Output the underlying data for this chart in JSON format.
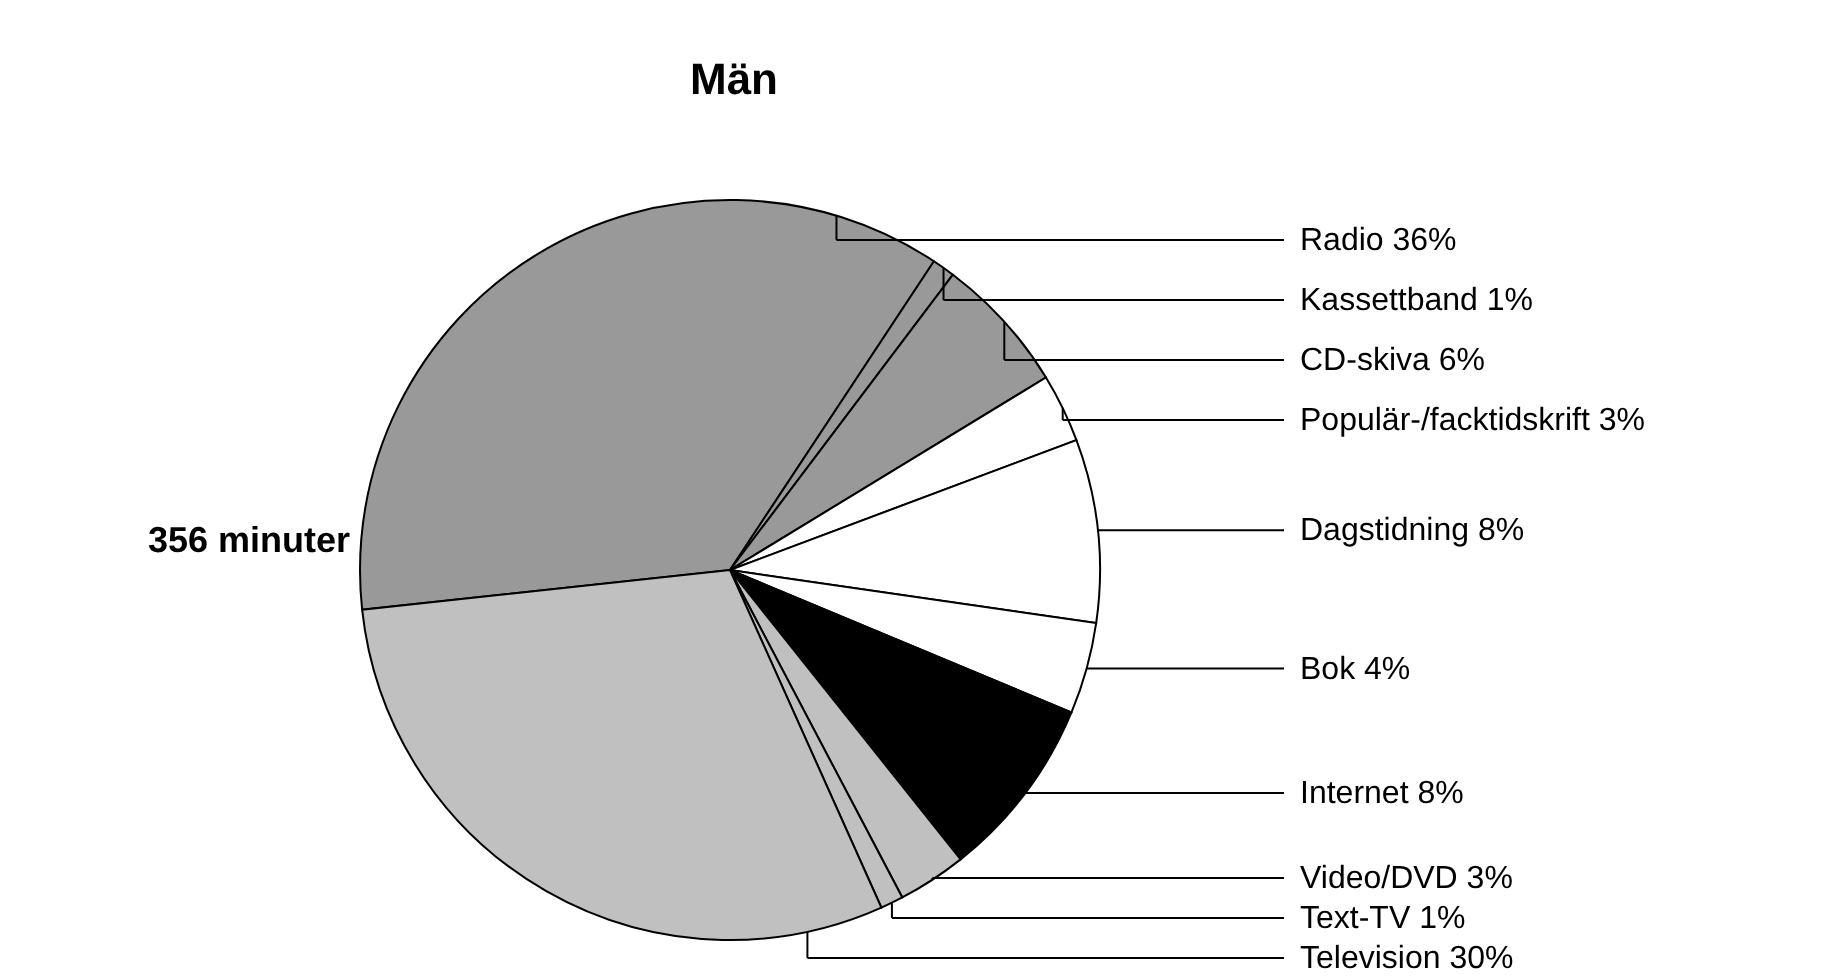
{
  "chart_data": {
    "type": "pie",
    "title": "Män",
    "categories": [
      "Radio",
      "Kassettband",
      "CD-skiva",
      "Populär-/facktidskrift",
      "Dagstidning",
      "Bok",
      "Internet",
      "Video/DVD",
      "Text-TV",
      "Television"
    ],
    "values": [
      36,
      1,
      6,
      3,
      8,
      4,
      8,
      3,
      1,
      30
    ],
    "value_labels": [
      "36%",
      "1%",
      "6%",
      "3%",
      "8%",
      "4%",
      "8%",
      "3%",
      "1%",
      "30%"
    ],
    "colors": [
      "#999999",
      "#999999",
      "#999999",
      "#ffffff",
      "#ffffff",
      "#ffffff",
      "#000000",
      "#c0c0c0",
      "#c0c0c0",
      "#c0c0c0"
    ],
    "annotations": [
      "356 minuter"
    ]
  }
}
